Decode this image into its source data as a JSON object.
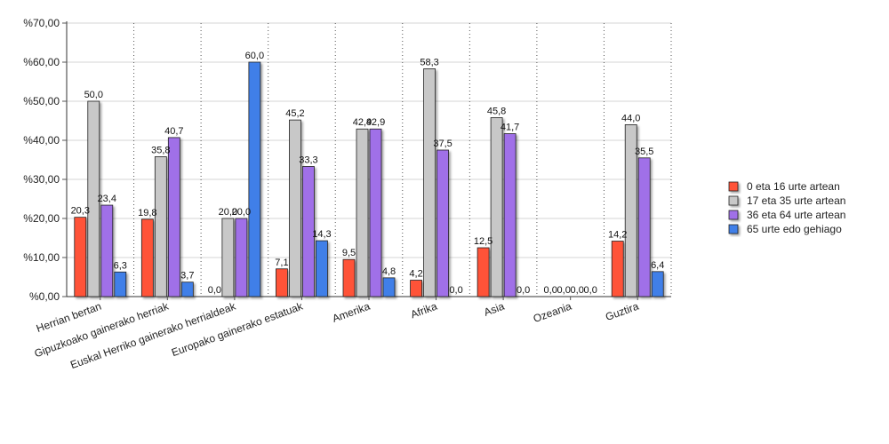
{
  "chart_data": {
    "type": "bar",
    "categories": [
      "Herrian bertan",
      "Gipuzkoako gainerako herriak",
      "Euskal Herriko gainerako herrialdeak",
      "Europako gainerako estatuak",
      "Amerika",
      "Afrika",
      "Asia",
      "Ozeania",
      "Guztira"
    ],
    "series": [
      {
        "name": "0 eta 16 urte artean",
        "color": "#ff5238",
        "values": [
          20.3,
          19.8,
          0.0,
          7.1,
          9.5,
          4.2,
          12.5,
          0.0,
          14.2
        ],
        "labels": [
          "20,3",
          "19,8",
          "0,0",
          "7,1",
          "9,5",
          "4,2",
          "12,5",
          "0,0",
          "14,2"
        ]
      },
      {
        "name": "17 eta 35 urte artean",
        "color": "#c8c8c8",
        "values": [
          50.0,
          35.8,
          20.0,
          45.2,
          42.9,
          58.3,
          45.8,
          0.0,
          44.0
        ],
        "labels": [
          "50,0",
          "35,8",
          "20,0",
          "45,2",
          "42,9",
          "58,3",
          "45,8",
          "0,0",
          "44,0"
        ]
      },
      {
        "name": "36 eta 64 urte artean",
        "color": "#a070e8",
        "values": [
          23.4,
          40.7,
          20.0,
          33.3,
          42.9,
          37.5,
          41.7,
          0.0,
          35.5
        ],
        "labels": [
          "23,4",
          "40,7",
          "20,0",
          "33,3",
          "42,9",
          "37,5",
          "41,7",
          "0,0",
          "35,5"
        ]
      },
      {
        "name": "65 urte edo gehiago",
        "color": "#3f7fe8",
        "values": [
          6.3,
          3.7,
          60.0,
          14.3,
          4.8,
          0.0,
          0.0,
          0.0,
          6.4
        ],
        "labels": [
          "6,3",
          "3,7",
          "60,0",
          "14,3",
          "4,8",
          "0,0",
          "0,0",
          "0,0",
          "6,4"
        ]
      }
    ],
    "y_ticks": [
      "%0,00",
      "%10,00",
      "%20,00",
      "%30,00",
      "%40,00",
      "%50,00",
      "%60,00",
      "%70,00"
    ],
    "ylim": [
      0,
      70
    ],
    "legend_position": "right",
    "grid": "horizontal solid, vertical dotted"
  }
}
